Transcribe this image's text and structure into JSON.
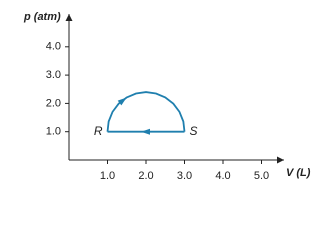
{
  "chart_data": {
    "type": "line",
    "y_label": "p (atm)",
    "x_label": "V (L)",
    "xlim": [
      0,
      5.5
    ],
    "ylim": [
      0,
      5
    ],
    "xticks": [
      {
        "value": 1,
        "label": "1.0"
      },
      {
        "value": 2,
        "label": "2.0"
      },
      {
        "value": 3,
        "label": "3.0"
      },
      {
        "value": 4,
        "label": "4.0"
      },
      {
        "value": 5,
        "label": "5.0"
      }
    ],
    "yticks": [
      {
        "value": 1,
        "label": "1.0"
      },
      {
        "value": 2,
        "label": "2.0"
      },
      {
        "value": 3,
        "label": "3.0"
      },
      {
        "value": 4,
        "label": "4.0"
      }
    ],
    "series": [
      {
        "color": "#1f7fae",
        "x": [
          1,
          1.03,
          1.13,
          1.29,
          1.5,
          1.74,
          2,
          2.26,
          2.5,
          2.71,
          2.87,
          2.97,
          3
        ],
        "values": [
          1,
          1.36,
          1.7,
          1.99,
          2.21,
          2.35,
          2.4,
          2.35,
          2.21,
          1.99,
          1.7,
          1.36,
          1
        ]
      },
      {
        "color": "#1f7fae",
        "x": [
          3,
          1
        ],
        "values": [
          1,
          1
        ]
      }
    ],
    "annotations": [
      {
        "text": "R",
        "x": 1,
        "y": 1
      },
      {
        "text": "S",
        "x": 3,
        "y": 1
      }
    ]
  }
}
